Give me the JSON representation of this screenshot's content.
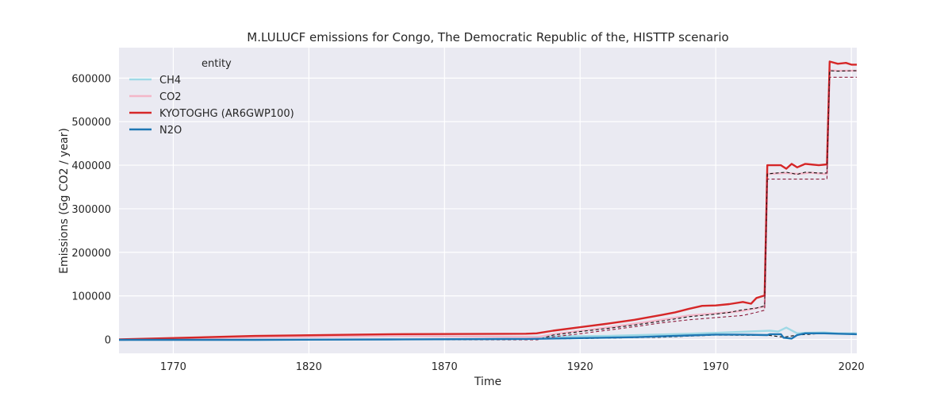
{
  "chart_data": {
    "type": "line",
    "title": "M.LULUCF emissions for Congo, The Democratic Republic of the, HISTTP scenario",
    "xlabel": "Time",
    "ylabel": "Emissions (Gg CO2 / year)",
    "xlim": [
      1750,
      2022
    ],
    "ylim": [
      -32000,
      670000
    ],
    "x_ticks": [
      1770,
      1820,
      1870,
      1920,
      1970,
      2020
    ],
    "y_ticks": [
      0,
      100000,
      200000,
      300000,
      400000,
      500000,
      600000
    ],
    "grid": true,
    "legend": {
      "title": "entity",
      "placement": "top-left"
    },
    "colors": {
      "background": "#eaeaf2",
      "grid": "#ffffff"
    },
    "series": [
      {
        "name": "CH4",
        "color": "#9fd9e6",
        "style": "solid",
        "points": [
          [
            1750,
            -1000
          ],
          [
            1800,
            5000
          ],
          [
            1850,
            8000
          ],
          [
            1900,
            6000
          ],
          [
            1930,
            8000
          ],
          [
            1960,
            13000
          ],
          [
            1970,
            15000
          ],
          [
            1990,
            20000
          ],
          [
            1993,
            18000
          ],
          [
            1996,
            27000
          ],
          [
            2000,
            14000
          ],
          [
            2003,
            15000
          ],
          [
            2010,
            16000
          ],
          [
            2015,
            14000
          ],
          [
            2022,
            14000
          ]
        ]
      },
      {
        "name": "CO2",
        "color": "#f4b6c8",
        "style": "solid",
        "points": [
          [
            1750,
            -1000
          ],
          [
            1800,
            5000
          ],
          [
            1850,
            8000
          ],
          [
            1900,
            6000
          ],
          [
            1904,
            5000
          ],
          [
            1910,
            12000
          ],
          [
            1930,
            27000
          ],
          [
            1950,
            45000
          ],
          [
            1960,
            55000
          ],
          [
            1975,
            62000
          ],
          [
            1980,
            66000
          ],
          [
            1985,
            72000
          ],
          [
            1988,
            75000
          ],
          [
            1989,
            380000
          ],
          [
            1996,
            382000
          ],
          [
            2000,
            380000
          ],
          [
            2005,
            383000
          ],
          [
            2010,
            380000
          ],
          [
            2011,
            380000
          ],
          [
            2012,
            618000
          ],
          [
            2015,
            617000
          ],
          [
            2020,
            617000
          ],
          [
            2022,
            617000
          ]
        ]
      },
      {
        "name": "KYOTOGHG (AR6GWP100)",
        "color": "#d62728",
        "style": "solid",
        "points": [
          [
            1750,
            0
          ],
          [
            1800,
            8000
          ],
          [
            1850,
            12000
          ],
          [
            1900,
            13000
          ],
          [
            1904,
            14000
          ],
          [
            1910,
            20000
          ],
          [
            1920,
            28000
          ],
          [
            1930,
            36000
          ],
          [
            1940,
            45000
          ],
          [
            1950,
            56000
          ],
          [
            1955,
            62000
          ],
          [
            1960,
            70000
          ],
          [
            1965,
            77000
          ],
          [
            1970,
            78000
          ],
          [
            1975,
            81000
          ],
          [
            1980,
            86000
          ],
          [
            1983,
            82000
          ],
          [
            1985,
            95000
          ],
          [
            1988,
            101000
          ],
          [
            1989,
            400000
          ],
          [
            1994,
            400000
          ],
          [
            1996,
            392000
          ],
          [
            1998,
            403000
          ],
          [
            2000,
            395000
          ],
          [
            2003,
            403000
          ],
          [
            2008,
            400000
          ],
          [
            2011,
            402000
          ],
          [
            2012,
            638000
          ],
          [
            2015,
            633000
          ],
          [
            2018,
            635000
          ],
          [
            2020,
            631000
          ],
          [
            2022,
            631000
          ]
        ]
      },
      {
        "name": "N2O",
        "color": "#1f77b4",
        "style": "solid",
        "points": [
          [
            1750,
            -1000
          ],
          [
            1800,
            -1000
          ],
          [
            1850,
            0
          ],
          [
            1900,
            1000
          ],
          [
            1920,
            3000
          ],
          [
            1940,
            5000
          ],
          [
            1960,
            9000
          ],
          [
            1970,
            11000
          ],
          [
            1980,
            11000
          ],
          [
            1989,
            10000
          ],
          [
            1990,
            12000
          ],
          [
            1994,
            12000
          ],
          [
            1995,
            4000
          ],
          [
            1998,
            2000
          ],
          [
            2000,
            10000
          ],
          [
            2003,
            14000
          ],
          [
            2010,
            14000
          ],
          [
            2015,
            13000
          ],
          [
            2022,
            12000
          ]
        ]
      },
      {
        "name": "",
        "color": "#111111",
        "style": "dashed",
        "points": [
          [
            1750,
            -1000
          ],
          [
            1800,
            -1000
          ],
          [
            1900,
            0
          ],
          [
            1904,
            -1000
          ],
          [
            1910,
            10000
          ],
          [
            1920,
            18000
          ],
          [
            1930,
            25000
          ],
          [
            1940,
            33000
          ],
          [
            1950,
            42000
          ],
          [
            1960,
            52000
          ],
          [
            1970,
            58000
          ],
          [
            1975,
            62000
          ],
          [
            1980,
            68000
          ],
          [
            1985,
            72000
          ],
          [
            1988,
            77000
          ],
          [
            1989,
            380000
          ],
          [
            1996,
            384000
          ],
          [
            2000,
            379000
          ],
          [
            2003,
            384000
          ],
          [
            2008,
            382000
          ],
          [
            2011,
            382000
          ],
          [
            2012,
            617000
          ],
          [
            2015,
            616000
          ],
          [
            2020,
            617000
          ],
          [
            2022,
            617000
          ]
        ]
      },
      {
        "name": "",
        "color": "#8b1a3a",
        "style": "dashed",
        "points": [
          [
            1750,
            -1000
          ],
          [
            1900,
            -1000
          ],
          [
            1904,
            -1000
          ],
          [
            1910,
            6000
          ],
          [
            1920,
            13000
          ],
          [
            1930,
            21000
          ],
          [
            1940,
            29000
          ],
          [
            1950,
            38000
          ],
          [
            1960,
            45000
          ],
          [
            1970,
            50000
          ],
          [
            1980,
            55000
          ],
          [
            1985,
            62000
          ],
          [
            1988,
            67000
          ],
          [
            1989,
            368000
          ],
          [
            2011,
            368000
          ],
          [
            2012,
            602000
          ],
          [
            2022,
            602000
          ]
        ]
      },
      {
        "name": "",
        "color": "#111111",
        "style": "dashed",
        "points": [
          [
            1750,
            -1000
          ],
          [
            1900,
            0
          ],
          [
            1904,
            1000
          ],
          [
            1920,
            2000
          ],
          [
            1950,
            5000
          ],
          [
            1970,
            10000
          ],
          [
            1990,
            9000
          ],
          [
            1995,
            5000
          ],
          [
            2000,
            10000
          ],
          [
            2010,
            14000
          ],
          [
            2022,
            13000
          ]
        ]
      }
    ]
  }
}
